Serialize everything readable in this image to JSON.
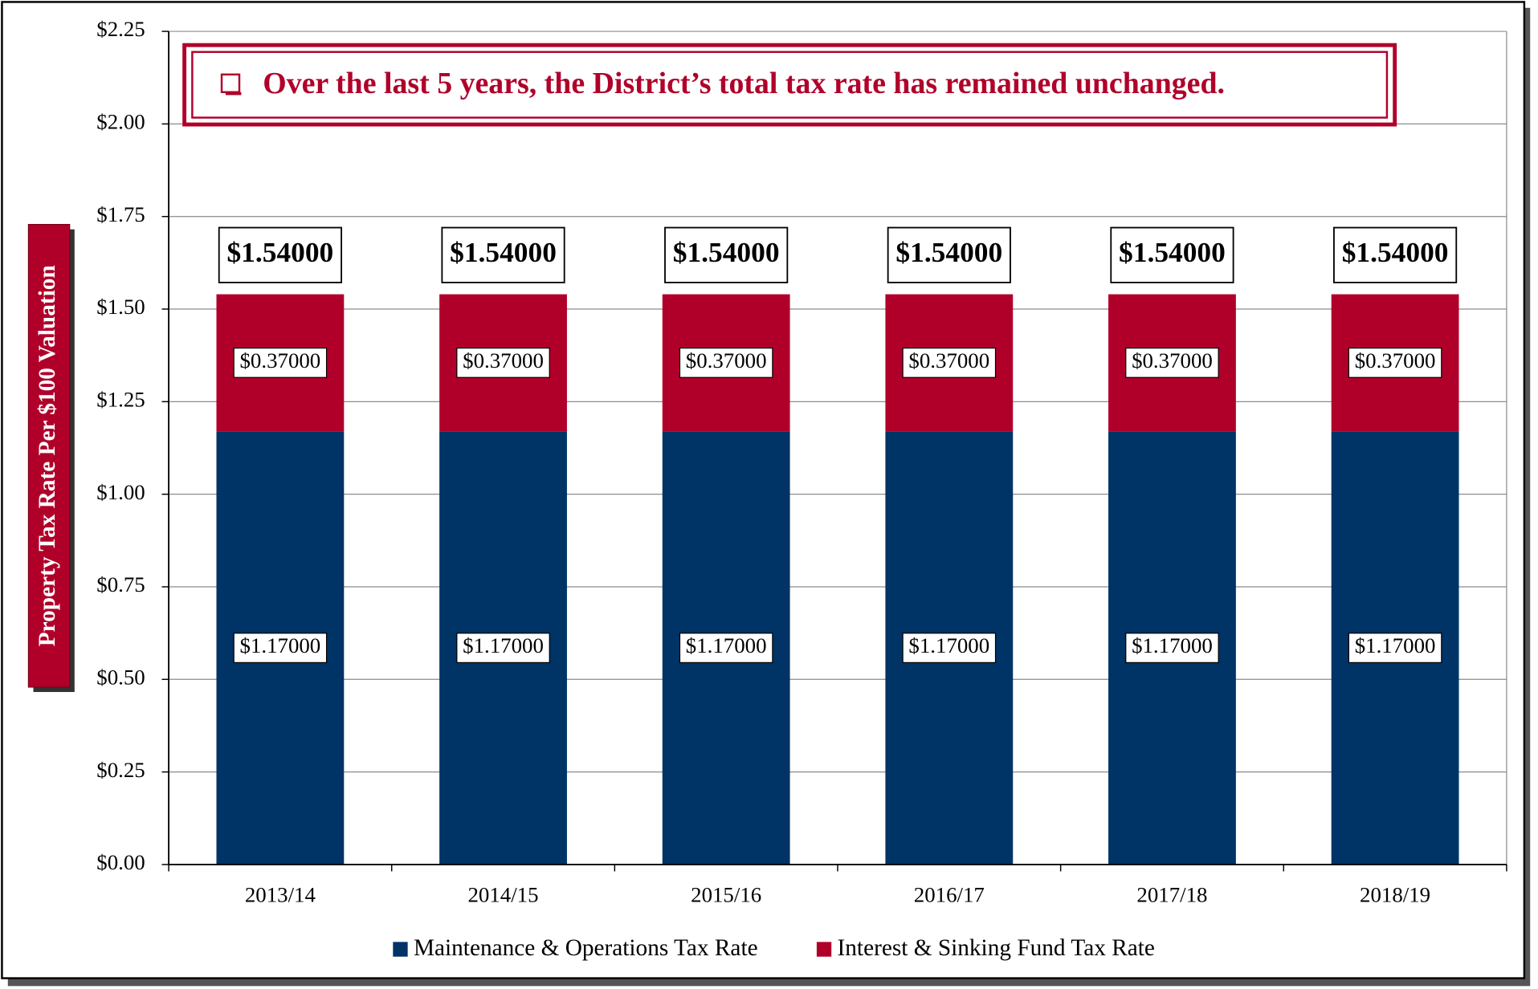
{
  "chart_data": {
    "type": "stacked_bar",
    "annotation": "Over the last 5 years, the District’s total tax rate has remained unchanged.",
    "y_label": "Property Tax Rate Per $100 Valuation",
    "categories": [
      "2013/14",
      "2014/15",
      "2015/16",
      "2016/17",
      "2017/18",
      "2018/19"
    ],
    "series": [
      {
        "name": "Maintenance & Operations Tax Rate",
        "color": "#003366",
        "values": [
          1.17,
          1.17,
          1.17,
          1.17,
          1.17,
          1.17
        ],
        "value_labels": [
          "$1.17000",
          "$1.17000",
          "$1.17000",
          "$1.17000",
          "$1.17000",
          "$1.17000"
        ]
      },
      {
        "name": "Interest & Sinking Fund Tax Rate",
        "color": "#b0002a",
        "values": [
          0.37,
          0.37,
          0.37,
          0.37,
          0.37,
          0.37
        ],
        "value_labels": [
          "$0.37000",
          "$0.37000",
          "$0.37000",
          "$0.37000",
          "$0.37000",
          "$0.37000"
        ]
      }
    ],
    "totals": [
      1.54,
      1.54,
      1.54,
      1.54,
      1.54,
      1.54
    ],
    "total_labels": [
      "$1.54000",
      "$1.54000",
      "$1.54000",
      "$1.54000",
      "$1.54000",
      "$1.54000"
    ],
    "ylim": [
      0,
      2.25
    ],
    "yticks": [
      {
        "value": 0,
        "label": "$0.00"
      },
      {
        "value": 0.25,
        "label": "$0.25"
      },
      {
        "value": 0.5,
        "label": "$0.50"
      },
      {
        "value": 0.75,
        "label": "$0.75"
      },
      {
        "value": 1,
        "label": "$1.00"
      },
      {
        "value": 1.25,
        "label": "$1.25"
      },
      {
        "value": 1.5,
        "label": "$1.50"
      },
      {
        "value": 1.75,
        "label": "$1.75"
      },
      {
        "value": 2,
        "label": "$2.00"
      },
      {
        "value": 2.25,
        "label": "$2.25"
      }
    ],
    "grid": true,
    "legend": "bottom"
  }
}
